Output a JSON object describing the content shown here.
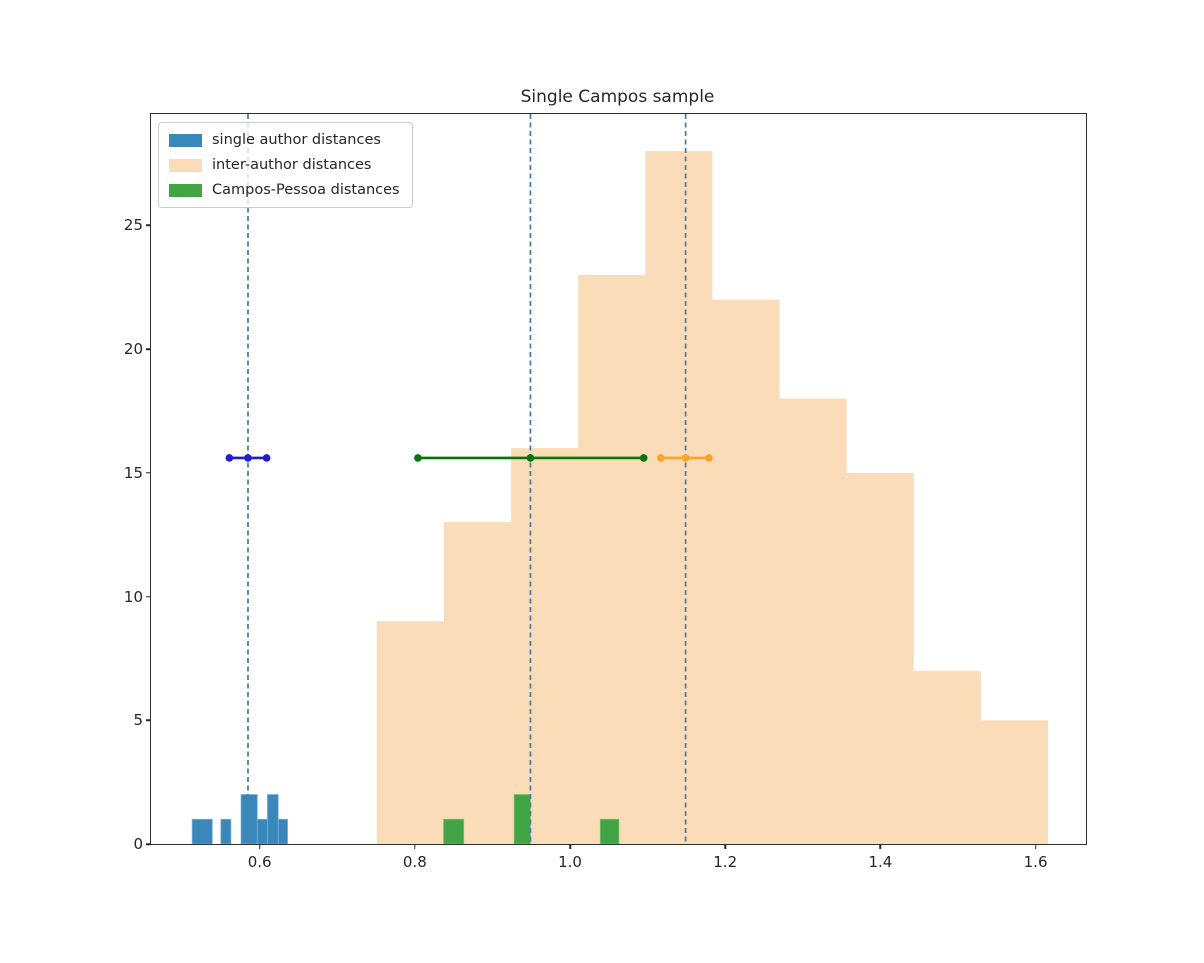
{
  "title": "Single Campos sample",
  "legend": {
    "items": [
      {
        "label": "single author distances",
        "color": "#3a87bc"
      },
      {
        "label": "inter-author distances",
        "color": "#fbdcb8"
      },
      {
        "label": "Campos-Pessoa distances",
        "color": "#42a442"
      }
    ]
  },
  "chart_data": {
    "type": "bar",
    "subtype": "overlaid-histograms",
    "title": "Single Campos sample",
    "xlabel": "",
    "ylabel": "",
    "xlim": [
      0.46,
      1.665
    ],
    "ylim": [
      0,
      29.5
    ],
    "x_ticks": [
      0.6,
      0.8,
      1.0,
      1.2,
      1.4,
      1.6
    ],
    "y_ticks": [
      0,
      5,
      10,
      15,
      20,
      25
    ],
    "grid": false,
    "legend_position": "upper-left",
    "series": [
      {
        "name": "single author distances",
        "type": "histogram",
        "color": "#3a87bc",
        "edge_color": "#7db3da",
        "bars": [
          {
            "x0": 0.513,
            "x1": 0.539,
            "count": 1
          },
          {
            "x0": 0.55,
            "x1": 0.563,
            "count": 1
          },
          {
            "x0": 0.576,
            "x1": 0.597,
            "count": 2
          },
          {
            "x0": 0.597,
            "x1": 0.61,
            "count": 1
          },
          {
            "x0": 0.61,
            "x1": 0.624,
            "count": 2
          },
          {
            "x0": 0.624,
            "x1": 0.636,
            "count": 1
          }
        ]
      },
      {
        "name": "inter-author distances",
        "type": "histogram",
        "color": "#fbdcb8",
        "bin_edges": [
          0.751,
          0.8375,
          0.924,
          1.0105,
          1.097,
          1.1835,
          1.27,
          1.3565,
          1.443,
          1.5295,
          1.616
        ],
        "counts": [
          9,
          13,
          16,
          23,
          28,
          22,
          18,
          15,
          7,
          5
        ]
      },
      {
        "name": "Campos-Pessoa distances",
        "type": "histogram",
        "color": "#42a442",
        "edge_color": "#79c279",
        "bars": [
          {
            "x0": 0.837,
            "x1": 0.863,
            "count": 1
          },
          {
            "x0": 0.928,
            "x1": 0.949,
            "count": 2
          },
          {
            "x0": 1.039,
            "x1": 1.063,
            "count": 1
          }
        ]
      }
    ],
    "vlines": [
      {
        "name": "single-author-mean-line",
        "x": 0.585,
        "style": "dashed",
        "color": "#4c80aa"
      },
      {
        "name": "campos-pessoa-mean-line",
        "x": 0.949,
        "style": "dashed",
        "color": "#4c80aa"
      },
      {
        "name": "inter-author-mean-line",
        "x": 1.149,
        "style": "dashed",
        "color": "#4c80aa"
      }
    ],
    "errorbars": [
      {
        "name": "single-author-mean",
        "color": "#1e1ecf",
        "y": 15.6,
        "x": 0.585,
        "x_min": 0.561,
        "x_max": 0.609
      },
      {
        "name": "campos-pessoa-mean",
        "color": "#087408",
        "y": 15.6,
        "x": 0.949,
        "x_min": 0.804,
        "x_max": 1.095
      },
      {
        "name": "inter-author-mean",
        "color": "#faa528",
        "y": 15.6,
        "x": 1.149,
        "x_min": 1.117,
        "x_max": 1.179
      }
    ]
  }
}
